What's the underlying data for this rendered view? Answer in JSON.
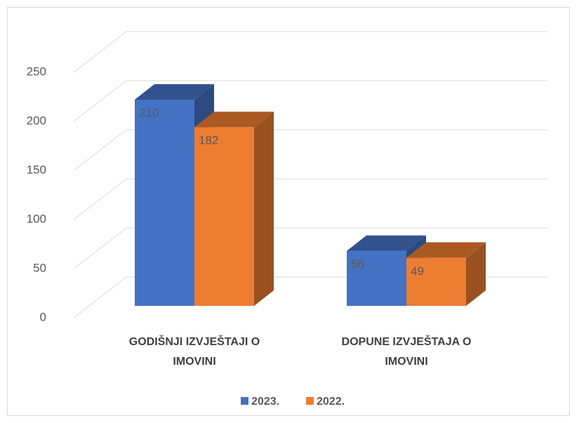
{
  "chart_data": {
    "type": "bar3d",
    "categories": [
      "GODIŠNJI IZVJEŠTAJI O IMOVINI",
      "DOPUNE IZVJEŠTAJA O IMOVINI"
    ],
    "series": [
      {
        "name": "2023.",
        "color": "#4472c4",
        "values": [
          210,
          56
        ]
      },
      {
        "name": "2022.",
        "color": "#ed7d31",
        "values": [
          182,
          49
        ]
      }
    ],
    "ylim": [
      0,
      250
    ],
    "yticks": [
      0,
      50,
      100,
      150,
      200,
      250
    ],
    "grid": true,
    "legend": "bottom"
  }
}
